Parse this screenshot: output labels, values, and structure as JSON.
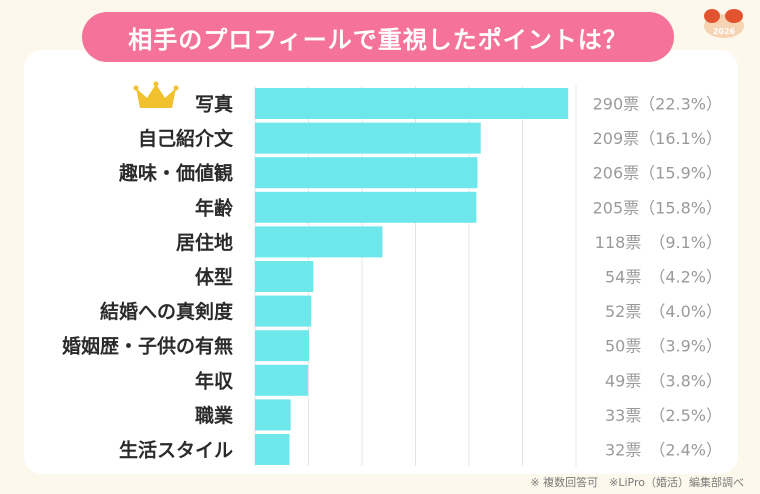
{
  "title": "相手のプロフィールで重視したポイントは？",
  "footnote": "※ 複数回答可　※LiPro（婚活）編集部調べ",
  "logo_text": "2026",
  "colors": {
    "bar": "#6ee7eb",
    "title_bg": "#f5729a",
    "crown": "#f2c12e",
    "grid": "#e4e4e4"
  },
  "icons": {
    "top_rank": "crown-icon"
  },
  "chart_data": {
    "type": "bar",
    "orientation": "horizontal",
    "categories": [
      "写真",
      "自己紹介文",
      "趣味・価値観",
      "年齢",
      "居住地",
      "体型",
      "結婚への真剣度",
      "婚姻歴・子供の有無",
      "年収",
      "職業",
      "生活スタイル"
    ],
    "values": [
      290,
      209,
      206,
      205,
      118,
      54,
      52,
      50,
      49,
      33,
      32
    ],
    "data_labels": [
      "290票（22.3%）",
      "209票（16.1%）",
      "206票（15.9%）",
      "205票（15.8%）",
      "118票　（9.1%）",
      "54票　（4.2%）",
      "52票　（4.0%）",
      "50票　（3.9%）",
      "49票　（3.8%）",
      "33票　（2.5%）",
      "32票　（2.4%）"
    ],
    "xlim": [
      0,
      300
    ],
    "grid": true
  }
}
